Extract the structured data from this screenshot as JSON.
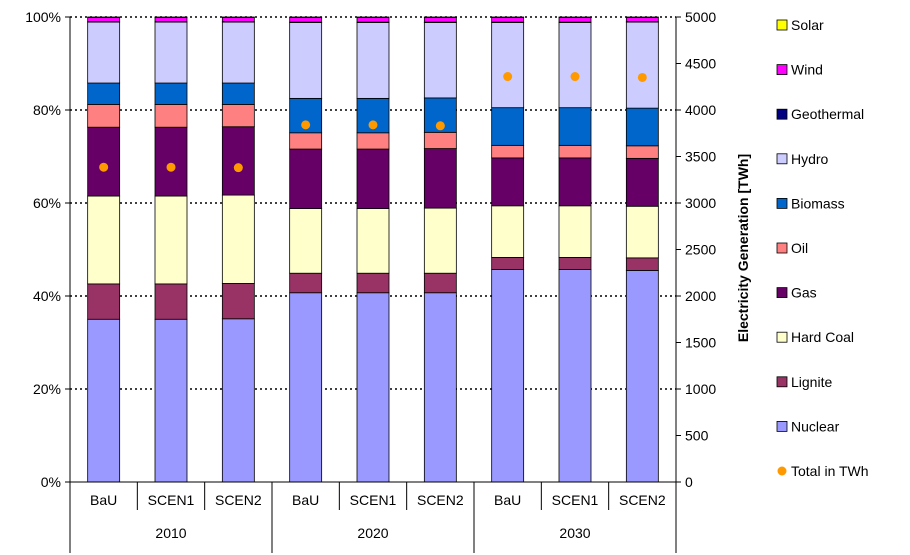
{
  "chart_data": {
    "type": "bar",
    "stacked": true,
    "percent_stacked": true,
    "groups": [
      {
        "label": "2010",
        "categories": [
          "BaU",
          "SCEN1",
          "SCEN2"
        ]
      },
      {
        "label": "2020",
        "categories": [
          "BaU",
          "SCEN1",
          "SCEN2"
        ]
      },
      {
        "label": "2030",
        "categories": [
          "BaU",
          "SCEN1",
          "SCEN2"
        ]
      }
    ],
    "categories": [
      "BaU",
      "SCEN1",
      "SCEN2",
      "BaU",
      "SCEN1",
      "SCEN2",
      "BaU",
      "SCEN1",
      "SCEN2"
    ],
    "series": [
      {
        "name": "Nuclear",
        "color": "#9999FF",
        "values": [
          0.35,
          0.35,
          0.351,
          0.407,
          0.407,
          0.407,
          0.457,
          0.457,
          0.455
        ]
      },
      {
        "name": "Lignite",
        "color": "#993366",
        "values": [
          0.076,
          0.076,
          0.076,
          0.042,
          0.042,
          0.042,
          0.026,
          0.026,
          0.027
        ]
      },
      {
        "name": "Hard Coal",
        "color": "#FFFFCC",
        "values": [
          0.189,
          0.189,
          0.19,
          0.139,
          0.139,
          0.14,
          0.111,
          0.111,
          0.111
        ]
      },
      {
        "name": "Gas",
        "color": "#660066",
        "values": [
          0.148,
          0.148,
          0.147,
          0.128,
          0.128,
          0.128,
          0.103,
          0.103,
          0.103
        ]
      },
      {
        "name": "Oil",
        "color": "#FF8080",
        "values": [
          0.049,
          0.049,
          0.048,
          0.035,
          0.035,
          0.035,
          0.027,
          0.027,
          0.027
        ]
      },
      {
        "name": "Biomass",
        "color": "#0066CC",
        "values": [
          0.046,
          0.046,
          0.046,
          0.074,
          0.074,
          0.074,
          0.081,
          0.081,
          0.081
        ]
      },
      {
        "name": "Hydro",
        "color": "#CCCCFF",
        "values": [
          0.131,
          0.131,
          0.131,
          0.163,
          0.163,
          0.162,
          0.183,
          0.183,
          0.185
        ]
      },
      {
        "name": "Geothermal",
        "color": "#000080",
        "values": [
          0.001,
          0.001,
          0.001,
          0.001,
          0.001,
          0.001,
          0.001,
          0.001,
          0.001
        ]
      },
      {
        "name": "Wind",
        "color": "#FF00FF",
        "values": [
          0.009,
          0.009,
          0.009,
          0.01,
          0.01,
          0.01,
          0.01,
          0.01,
          0.009
        ]
      },
      {
        "name": "Solar",
        "color": "#FFFF00",
        "values": [
          0.001,
          0.001,
          0.001,
          0.001,
          0.001,
          0.001,
          0.001,
          0.001,
          0.001
        ]
      }
    ],
    "total": {
      "name": "Total in TWh",
      "type": "scatter",
      "axis": "right",
      "color": "#FF9900",
      "values": [
        3385,
        3385,
        3380,
        3840,
        3840,
        3830,
        4360,
        4360,
        4350
      ]
    },
    "y_left": {
      "ylim": [
        0,
        1
      ],
      "ticks": [
        "0%",
        "20%",
        "40%",
        "60%",
        "80%",
        "100%"
      ]
    },
    "y_right": {
      "ylim": [
        0,
        5000
      ],
      "ticks": [
        "0",
        "500",
        "1000",
        "1500",
        "2000",
        "2500",
        "3000",
        "3500",
        "4000",
        "4500",
        "5000"
      ],
      "label": "Electricity Generation [TWh]"
    },
    "legend_order": [
      "Solar",
      "Wind",
      "Geothermal",
      "Hydro",
      "Biomass",
      "Oil",
      "Gas",
      "Hard Coal",
      "Lignite",
      "Nuclear",
      "Total in TWh"
    ],
    "legend_placement": "right",
    "grid": "dotted horizontal"
  }
}
